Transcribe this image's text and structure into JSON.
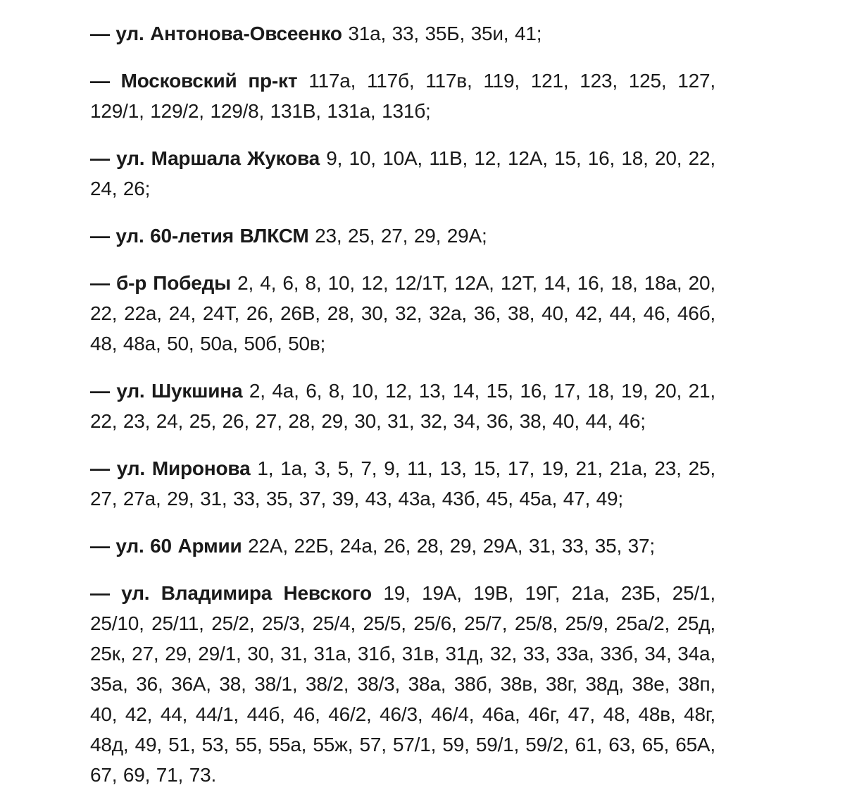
{
  "page": {
    "background_color": "#ffffff",
    "text_color": "#1a1a1a"
  },
  "streets": [
    {
      "name": "— ул. Антонова-Овсеенко",
      "numbers": "31а, 33, 35Б, 35и, 41;"
    },
    {
      "name": "— Московский пр-кт",
      "numbers": "117а, 117б, 117в, 119, 121, 123, 125, 127, 129/1, 129/2, 129/8, 131В, 131а, 131б;"
    },
    {
      "name": "— ул. Маршала Жукова",
      "numbers": "9, 10, 10А, 11В, 12, 12А, 15, 16, 18, 20, 22, 24, 26;"
    },
    {
      "name": "— ул. 60-летия ВЛКСМ",
      "numbers": "23, 25, 27, 29, 29А;"
    },
    {
      "name": "— б-р Победы",
      "numbers": "2, 4, 6, 8, 10, 12, 12/1Т, 12А, 12Т, 14, 16, 18, 18а, 20, 22, 22а, 24, 24Т, 26, 26В, 28, 30, 32, 32а, 36, 38, 40, 42, 44, 46, 46б, 48, 48а, 50, 50а, 50б, 50в;"
    },
    {
      "name": "— ул. Шукшина",
      "numbers": "2, 4а, 6, 8, 10, 12, 13, 14, 15, 16, 17, 18, 19, 20, 21, 22, 23, 24, 25, 26, 27, 28, 29, 30, 31, 32, 34, 36, 38, 40, 44, 46;"
    },
    {
      "name": "— ул. Миронова",
      "numbers": "1, 1а, 3, 5, 7, 9, 11, 13, 15, 17, 19, 21, 21а, 23, 25, 27, 27а, 29, 31, 33, 35, 37, 39, 43, 43а, 43б, 45, 45а, 47, 49;"
    },
    {
      "name": "— ул. 60 Армии",
      "numbers": "22А, 22Б, 24а, 26, 28, 29, 29А, 31, 33, 35, 37;"
    },
    {
      "name": "— ул. Владимира Невского",
      "numbers": "19, 19А, 19В, 19Г, 21а, 23Б, 25/1, 25/10, 25/11, 25/2, 25/3, 25/4, 25/5, 25/6, 25/7, 25/8, 25/9, 25а/2, 25д, 25к, 27, 29, 29/1, 30, 31, 31а, 31б, 31в, 31д, 32, 33, 33а, 33б, 34, 34а, 35а, 36, 36А, 38, 38/1, 38/2, 38/3, 38а, 38б, 38в, 38г, 38д, 38е, 38п, 40, 42, 44, 44/1, 44б, 46, 46/2, 46/3, 46/4, 46а, 46г, 47, 48, 48в, 48г, 48д, 49, 51, 53, 55, 55а, 55ж, 57, 57/1, 59, 59/1, 59/2, 61, 63, 65, 65А, 67, 69, 71, 73."
    }
  ]
}
